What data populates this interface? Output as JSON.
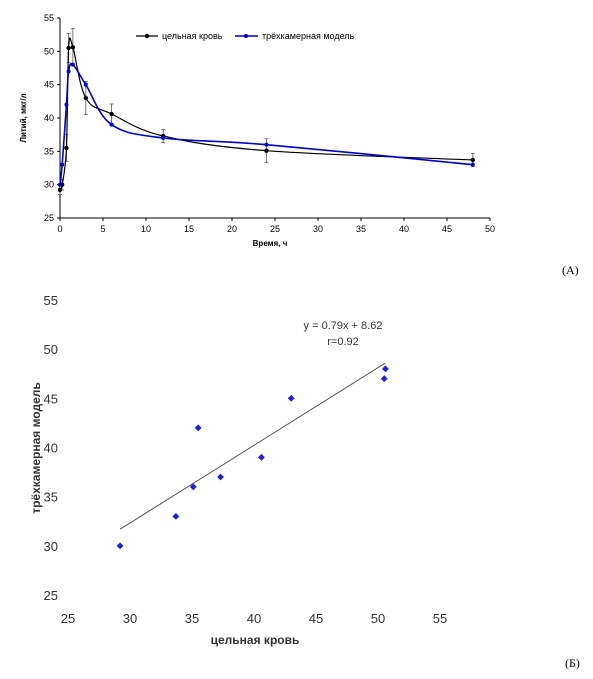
{
  "panel_labels": {
    "a": "(А)",
    "b": "(Б)"
  },
  "chart_data": [
    {
      "type": "line",
      "xlabel": "Время, ч",
      "ylabel": "Литий, мкг/л",
      "xlim": [
        0,
        50
      ],
      "ylim": [
        25,
        55
      ],
      "xticks": [
        0,
        5,
        10,
        15,
        20,
        25,
        30,
        35,
        40,
        45,
        50
      ],
      "yticks": [
        25,
        30,
        35,
        40,
        45,
        50,
        55
      ],
      "grid": false,
      "legend_position": "top",
      "series": [
        {
          "name": "цельная кровь",
          "color": "#000000",
          "x": [
            0,
            0.25,
            0.75,
            1.0,
            1.5,
            3,
            6,
            12,
            24,
            48
          ],
          "y": [
            29.2,
            30.0,
            35.5,
            50.5,
            50.6,
            43.0,
            40.6,
            37.3,
            35.1,
            33.7
          ],
          "err": [
            0.7,
            0.8,
            2.0,
            2.2,
            2.8,
            2.5,
            1.5,
            1.0,
            1.8,
            1.0
          ]
        },
        {
          "name": "трёхкамерная модель",
          "color": "#0000cc",
          "x": [
            0,
            0.25,
            0.75,
            1.0,
            1.5,
            3,
            6,
            12,
            24,
            48
          ],
          "y": [
            30.0,
            33.0,
            42.0,
            47.0,
            48.0,
            45.0,
            39.0,
            37.0,
            36.0,
            33.0
          ]
        }
      ]
    },
    {
      "type": "scatter",
      "xlabel": "цельная кровь",
      "ylabel": "трёхкамерная модель",
      "xlim": [
        25,
        55
      ],
      "ylim": [
        25,
        55
      ],
      "xticks": [
        25,
        30,
        35,
        40,
        45,
        50,
        55
      ],
      "yticks": [
        25,
        30,
        35,
        40,
        45,
        50,
        55
      ],
      "grid": false,
      "marker_color": "#1f1fd6",
      "points": [
        [
          29.2,
          30.0
        ],
        [
          33.7,
          33.0
        ],
        [
          35.1,
          36.0
        ],
        [
          35.5,
          42.0
        ],
        [
          37.3,
          37.0
        ],
        [
          40.6,
          39.0
        ],
        [
          43.0,
          45.0
        ],
        [
          50.5,
          47.0
        ],
        [
          50.6,
          48.0
        ]
      ],
      "trendline": {
        "slope": 0.79,
        "intercept": 8.62,
        "x_range": [
          29.2,
          50.6
        ]
      },
      "equation": "y = 0.79x + 8.62",
      "r_label": "r=0.92"
    }
  ]
}
